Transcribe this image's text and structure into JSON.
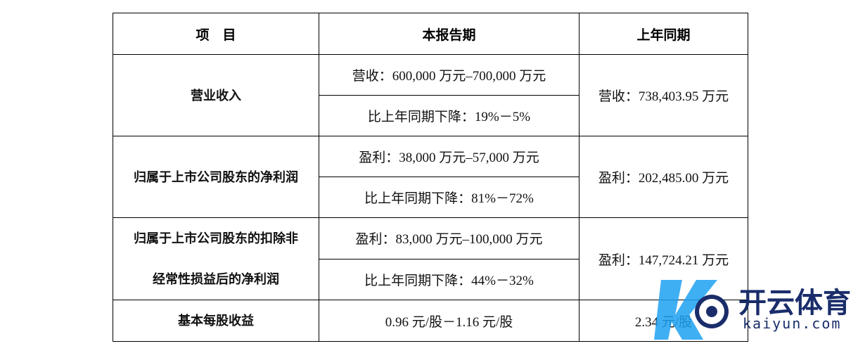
{
  "table": {
    "header": [
      "项　目",
      "本报告期",
      "上年同期"
    ],
    "rows": [
      {
        "label": [
          "营业收入"
        ],
        "current": [
          "营收：600,000 万元–700,000 万元",
          "比上年同期下降：19%－5%"
        ],
        "prior": "营收：738,403.95 万元"
      },
      {
        "label": [
          "归属于上市公司股东的净利润"
        ],
        "current": [
          "盈利：38,000 万元–57,000 万元",
          "比上年同期下降：81%－72%"
        ],
        "prior": "盈利：202,485.00 万元"
      },
      {
        "label": [
          "归属于上市公司股东的扣除非",
          "经常性损益后的净利润"
        ],
        "current": [
          "盈利：83,000 万元–100,000 万元",
          "比上年同期下降：44%－32%"
        ],
        "prior": "盈利：147,724.21 万元"
      },
      {
        "label": [
          "基本每股收益"
        ],
        "current": [
          "0.96 元/股－1.16 元/股"
        ],
        "prior": "2.34 元/股"
      }
    ]
  },
  "watermark": {
    "brand": "开云体育",
    "site": "kaiyun.com"
  }
}
